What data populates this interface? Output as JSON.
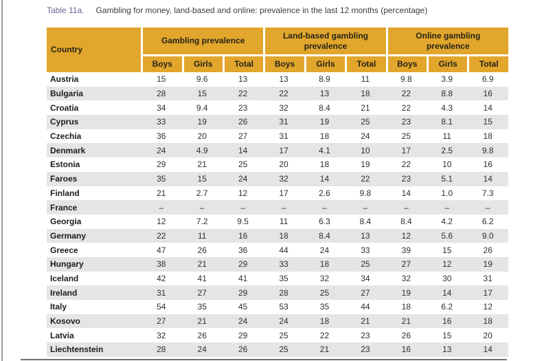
{
  "title": {
    "label": "Table 11a.",
    "text": "Gambling for money, land-based and online: prevalence in the last 12 months (percentage)"
  },
  "colors": {
    "header_bg": "#e2a62c",
    "row_alt_bg": "#e4e5e5",
    "title_label": "#6f6399"
  },
  "table": {
    "country_header": "Country",
    "groups": [
      {
        "label": "Gambling prevalence",
        "cols": [
          "Boys",
          "Girls",
          "Total"
        ]
      },
      {
        "label": "Land-based gambling prevalence",
        "cols": [
          "Boys",
          "Girls",
          "Total"
        ]
      },
      {
        "label": "Online gambling prevalence",
        "cols": [
          "Boys",
          "Girls",
          "Total"
        ]
      }
    ],
    "rows": [
      {
        "country": "Austria",
        "values": [
          "15",
          "9.6",
          "13",
          "13",
          "8.9",
          "11",
          "9.8",
          "3.9",
          "6.9"
        ]
      },
      {
        "country": "Bulgaria",
        "values": [
          "28",
          "15",
          "22",
          "22",
          "13",
          "18",
          "22",
          "8.8",
          "16"
        ]
      },
      {
        "country": "Croatia",
        "values": [
          "34",
          "9.4",
          "23",
          "32",
          "8.4",
          "21",
          "22",
          "4.3",
          "14"
        ]
      },
      {
        "country": "Cyprus",
        "values": [
          "33",
          "19",
          "26",
          "31",
          "19",
          "25",
          "23",
          "8.1",
          "15"
        ]
      },
      {
        "country": "Czechia",
        "values": [
          "36",
          "20",
          "27",
          "31",
          "18",
          "24",
          "25",
          "11",
          "18"
        ]
      },
      {
        "country": "Denmark",
        "values": [
          "24",
          "4.9",
          "14",
          "17",
          "4.1",
          "10",
          "17",
          "2.5",
          "9.8"
        ]
      },
      {
        "country": "Estonia",
        "values": [
          "29",
          "21",
          "25",
          "20",
          "18",
          "19",
          "22",
          "10",
          "16"
        ]
      },
      {
        "country": "Faroes",
        "values": [
          "35",
          "15",
          "24",
          "32",
          "14",
          "22",
          "23",
          "5.1",
          "14"
        ]
      },
      {
        "country": "Finland",
        "values": [
          "21",
          "2.7",
          "12",
          "17",
          "2.6",
          "9.8",
          "14",
          "1.0",
          "7.3"
        ]
      },
      {
        "country": "France",
        "values": [
          "–",
          "–",
          "–",
          "–",
          "–",
          "–",
          "–",
          "–",
          "–"
        ]
      },
      {
        "country": "Georgia",
        "values": [
          "12",
          "7.2",
          "9.5",
          "11",
          "6.3",
          "8.4",
          "8.4",
          "4.2",
          "6.2"
        ]
      },
      {
        "country": "Germany",
        "values": [
          "22",
          "11",
          "16",
          "18",
          "8.4",
          "13",
          "12",
          "5.6",
          "9.0"
        ]
      },
      {
        "country": "Greece",
        "values": [
          "47",
          "26",
          "36",
          "44",
          "24",
          "33",
          "39",
          "15",
          "26"
        ]
      },
      {
        "country": "Hungary",
        "values": [
          "38",
          "21",
          "29",
          "33",
          "18",
          "25",
          "27",
          "12",
          "19"
        ]
      },
      {
        "country": "Iceland",
        "values": [
          "42",
          "41",
          "41",
          "35",
          "32",
          "34",
          "32",
          "30",
          "31"
        ]
      },
      {
        "country": "Ireland",
        "values": [
          "31",
          "27",
          "29",
          "28",
          "25",
          "27",
          "19",
          "14",
          "17"
        ]
      },
      {
        "country": "Italy",
        "values": [
          "54",
          "35",
          "45",
          "53",
          "35",
          "44",
          "18",
          "6.2",
          "12"
        ]
      },
      {
        "country": "Kosovo",
        "values": [
          "27",
          "21",
          "24",
          "24",
          "18",
          "21",
          "21",
          "16",
          "18"
        ]
      },
      {
        "country": "Latvia",
        "values": [
          "32",
          "26",
          "29",
          "25",
          "22",
          "23",
          "26",
          "15",
          "20"
        ]
      },
      {
        "country": "Liechtenstein",
        "values": [
          "28",
          "24",
          "26",
          "25",
          "21",
          "23",
          "16",
          "13",
          "14"
        ]
      }
    ]
  }
}
